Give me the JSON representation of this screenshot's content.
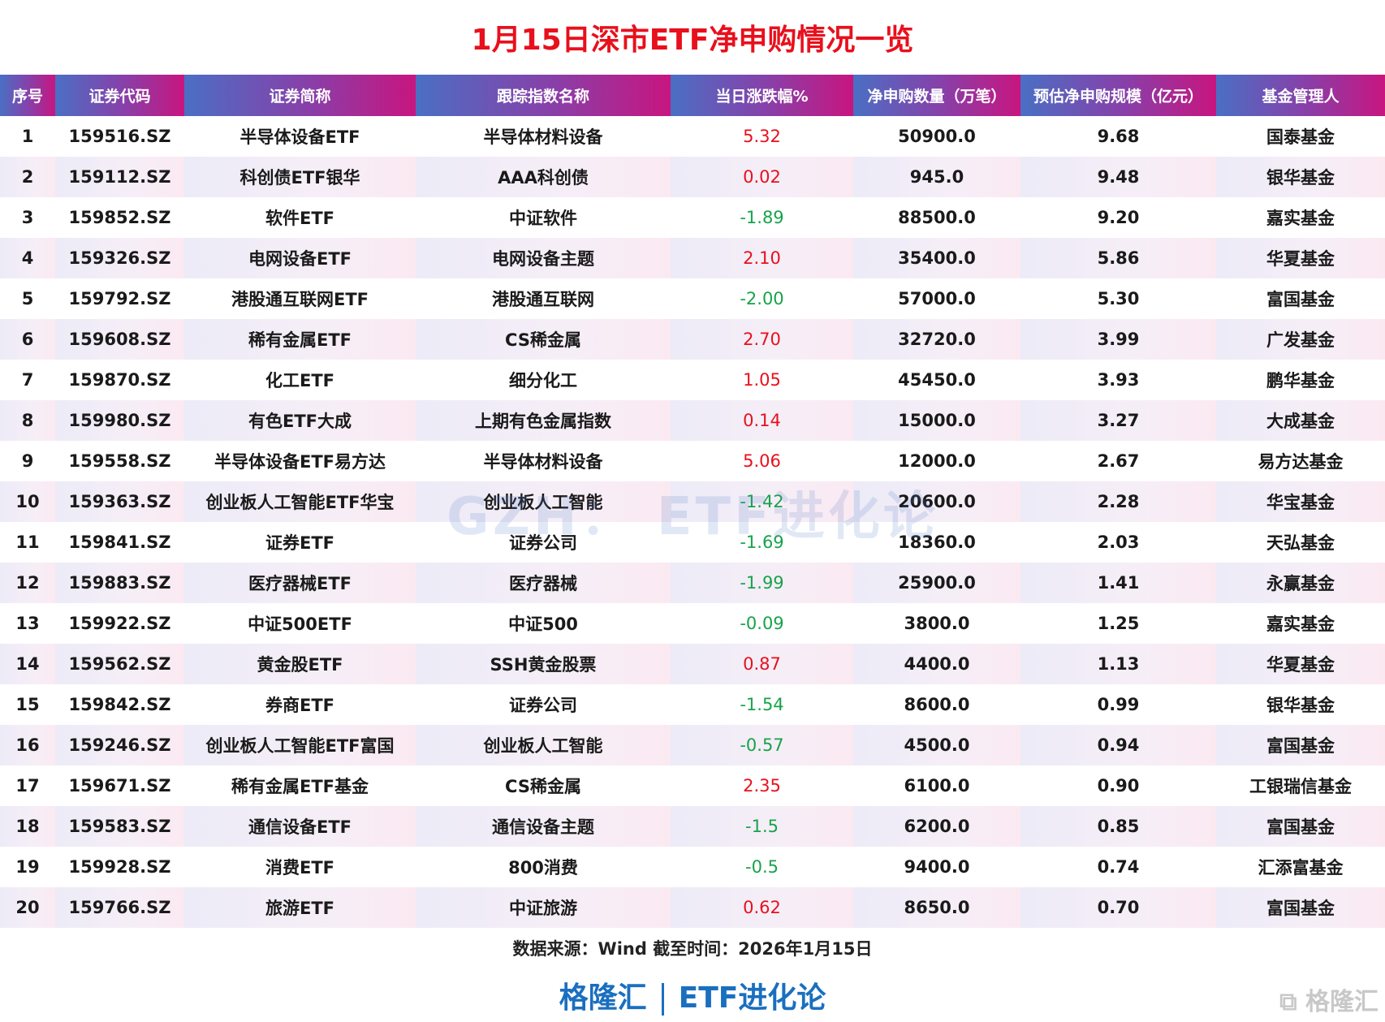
{
  "title": "1月15日深市ETF净申购情况一览",
  "columns": [
    "序号",
    "证券代码",
    "证券简称",
    "跟踪指数名称",
    "当日涨跌幅%",
    "净申购数量（万笔）",
    "预估净申购规模（亿元）",
    "基金管理人"
  ],
  "rows": [
    [
      "1",
      "159516.SZ",
      "半导体设备ETF",
      "半导体材料设备",
      "5.32",
      "50900.0",
      "9.68",
      "国泰基金"
    ],
    [
      "2",
      "159112.SZ",
      "科创债ETF银华",
      "AAA科创债",
      "0.02",
      "945.0",
      "9.48",
      "银华基金"
    ],
    [
      "3",
      "159852.SZ",
      "软件ETF",
      "中证软件",
      "-1.89",
      "88500.0",
      "9.20",
      "嘉实基金"
    ],
    [
      "4",
      "159326.SZ",
      "电网设备ETF",
      "电网设备主题",
      "2.10",
      "35400.0",
      "5.86",
      "华夏基金"
    ],
    [
      "5",
      "159792.SZ",
      "港股通互联网ETF",
      "港股通互联网",
      "-2.00",
      "57000.0",
      "5.30",
      "富国基金"
    ],
    [
      "6",
      "159608.SZ",
      "稀有金属ETF",
      "CS稀金属",
      "2.70",
      "32720.0",
      "3.99",
      "广发基金"
    ],
    [
      "7",
      "159870.SZ",
      "化工ETF",
      "细分化工",
      "1.05",
      "45450.0",
      "3.93",
      "鹏华基金"
    ],
    [
      "8",
      "159980.SZ",
      "有色ETF大成",
      "上期有色金属指数",
      "0.14",
      "15000.0",
      "3.27",
      "大成基金"
    ],
    [
      "9",
      "159558.SZ",
      "半导体设备ETF易方达",
      "半导体材料设备",
      "5.06",
      "12000.0",
      "2.67",
      "易方达基金"
    ],
    [
      "10",
      "159363.SZ",
      "创业板人工智能ETF华宝",
      "创业板人工智能",
      "-1.42",
      "20600.0",
      "2.28",
      "华宝基金"
    ],
    [
      "11",
      "159841.SZ",
      "证券ETF",
      "证券公司",
      "-1.69",
      "18360.0",
      "2.03",
      "天弘基金"
    ],
    [
      "12",
      "159883.SZ",
      "医疗器械ETF",
      "医疗器械",
      "-1.99",
      "25900.0",
      "1.41",
      "永赢基金"
    ],
    [
      "13",
      "159922.SZ",
      "中证500ETF",
      "中证500",
      "-0.09",
      "3800.0",
      "1.25",
      "嘉实基金"
    ],
    [
      "14",
      "159562.SZ",
      "黄金股ETF",
      "SSH黄金股票",
      "0.87",
      "4400.0",
      "1.13",
      "华夏基金"
    ],
    [
      "15",
      "159842.SZ",
      "券商ETF",
      "证券公司",
      "-1.54",
      "8600.0",
      "0.99",
      "银华基金"
    ],
    [
      "16",
      "159246.SZ",
      "创业板人工智能ETF富国",
      "创业板人工智能",
      "-0.57",
      "4500.0",
      "0.94",
      "富国基金"
    ],
    [
      "17",
      "159671.SZ",
      "稀有金属ETF基金",
      "CS稀金属",
      "2.35",
      "6100.0",
      "0.90",
      "工银瑞信基金"
    ],
    [
      "18",
      "159583.SZ",
      "通信设备ETF",
      "通信设备主题",
      "-1.5",
      "6200.0",
      "0.85",
      "富国基金"
    ],
    [
      "19",
      "159928.SZ",
      "消费ETF",
      "800消费",
      "-0.5",
      "9400.0",
      "0.74",
      "汇添富基金"
    ],
    [
      "20",
      "159766.SZ",
      "旅游ETF",
      "中证旅游",
      "0.62",
      "8650.0",
      "0.70",
      "富国基金"
    ]
  ],
  "watermark": "GZH： ETF进化论",
  "source": "数据来源：Wind 截至时间：2026年1月15日",
  "brand": {
    "left": "格隆汇",
    "right": "ETF进化论"
  },
  "logo": "格隆汇",
  "colors": {
    "title": "#e8101c",
    "up": "#e8101c",
    "down": "#17a34a",
    "brand": "#1a6fbf",
    "header_start": "#4a6fc4",
    "header_end": "#c8157f"
  }
}
